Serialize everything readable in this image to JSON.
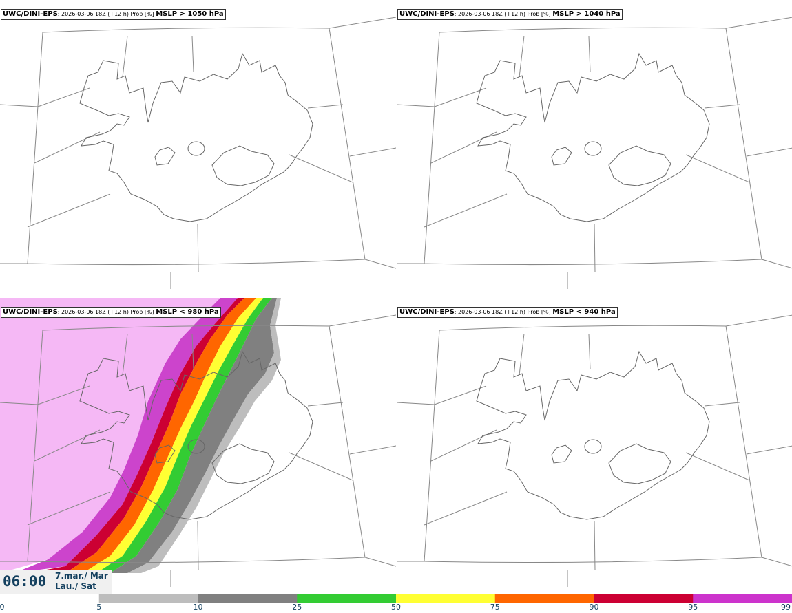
{
  "panels": [
    {
      "model": "UWC/DINI-EPS",
      "run": ": 2026-03-06 18Z (+12 h) Prob [%] ",
      "field": "MSLP > 1050 hPa"
    },
    {
      "model": "UWC/DINI-EPS",
      "run": ": 2026-03-06 18Z (+12 h) Prob [%] ",
      "field": "MSLP > 1040 hPa"
    },
    {
      "model": "UWC/DINI-EPS",
      "run": ": 2026-03-06 18Z (+12 h) Prob [%] ",
      "field": "MSLP < 980 hPa"
    },
    {
      "model": "UWC/DINI-EPS",
      "run": ": 2026-03-06 18Z (+12 h) Prob [%] ",
      "field": "MSLP < 940 hPa"
    }
  ],
  "valid_time": {
    "time": "06:00",
    "date": "7.mar./ Mar",
    "day": "Lau./ Sat"
  },
  "colorbar": {
    "ticks": [
      "0",
      "5",
      "10",
      "25",
      "50",
      "75",
      "90",
      "95",
      "99"
    ],
    "colors": [
      "#ffffff",
      "#bdbdbd",
      "#808080",
      "#33cc33",
      "#ffff33",
      "#ff6600",
      "#cc0033",
      "#cc33cc",
      "#f5b8f5"
    ]
  },
  "contour_colors": {
    "p95_99": "#f5b8f5",
    "p90_95": "#cc44cc",
    "p75_90": "#cc0033",
    "p50_75": "#ff6600",
    "p25_50": "#ffff33",
    "p10_25": "#33cc33",
    "p5_10": "#808080",
    "p0_5": "#bdbdbd"
  }
}
